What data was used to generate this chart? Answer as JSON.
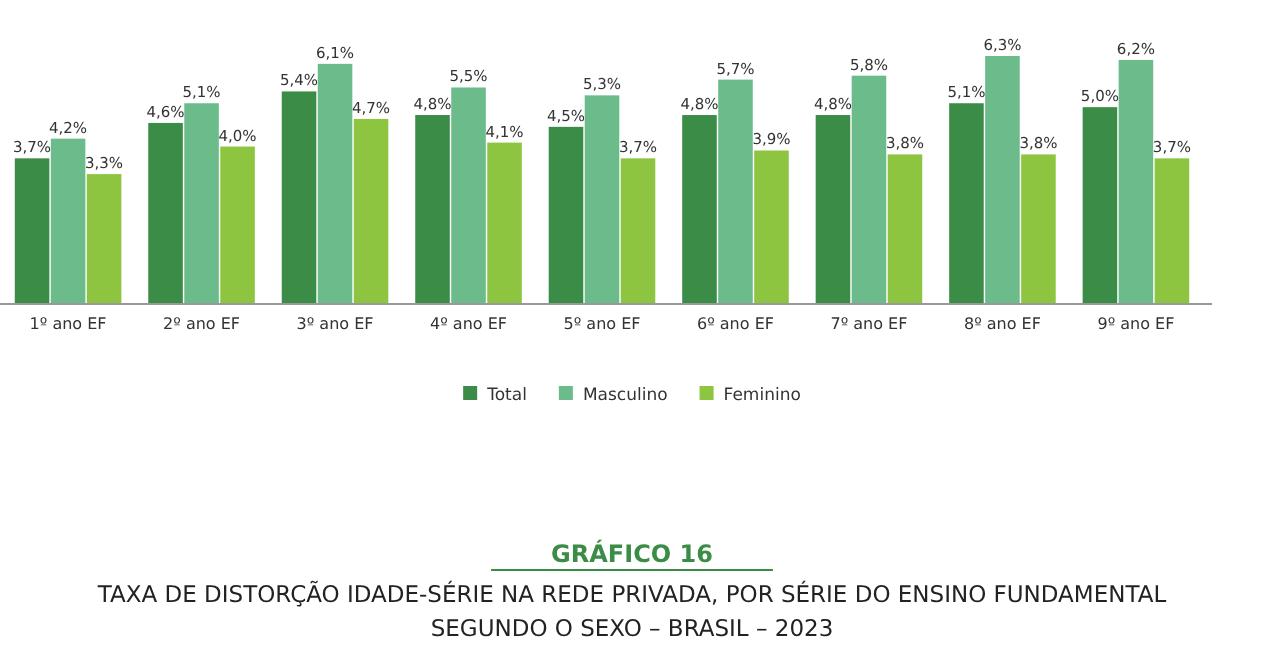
{
  "chart_data": {
    "type": "bar",
    "title": "GRÁFICO 16",
    "subtitle": "TAXA DE DISTORÇÃO IDADE-SÉRIE NA REDE PRIVADA, POR SÉRIE DO ENSINO FUNDAMENTAL SEGUNDO O SEXO – BRASIL – 2023",
    "categories": [
      "1º ano EF",
      "2º ano EF",
      "3º ano EF",
      "4º ano EF",
      "5º ano EF",
      "6º ano EF",
      "7º ano EF",
      "8º ano EF",
      "9º ano EF"
    ],
    "series": [
      {
        "name": "Total",
        "color": "#3b8c46",
        "values": [
          3.7,
          4.6,
          5.4,
          4.8,
          4.5,
          4.8,
          4.8,
          5.1,
          5.0
        ],
        "value_labels": [
          "3,7%",
          "4,6%",
          "5,4%",
          "4,8%",
          "4,5%",
          "4,8%",
          "4,8%",
          "5,1%",
          "5,0%"
        ]
      },
      {
        "name": "Masculino",
        "color": "#6cbb8b",
        "values": [
          4.2,
          5.1,
          6.1,
          5.5,
          5.3,
          5.7,
          5.8,
          6.3,
          6.2
        ],
        "value_labels": [
          "4,2%",
          "5,1%",
          "6,1%",
          "5,5%",
          "5,3%",
          "5,7%",
          "5,8%",
          "6,3%",
          "6,2%"
        ]
      },
      {
        "name": "Feminino",
        "color": "#8dc540",
        "values": [
          3.3,
          4.0,
          4.7,
          4.1,
          3.7,
          3.9,
          3.8,
          3.8,
          3.7
        ],
        "value_labels": [
          "3,3%",
          "4,0%",
          "4,7%",
          "4,1%",
          "3,7%",
          "3,9%",
          "3,8%",
          "3,8%",
          "3,7%"
        ]
      }
    ],
    "tick_labels": "x",
    "grid": false,
    "legend": "bottom"
  }
}
